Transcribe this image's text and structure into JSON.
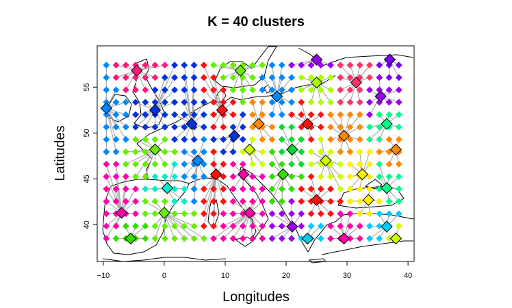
{
  "chart_data": {
    "type": "scatter",
    "title": "K = 40 clusters",
    "xlabel": "Longitudes",
    "ylabel": "Latitudes",
    "xlim": [
      -11,
      41
    ],
    "ylim": [
      36,
      59.5
    ],
    "xticks": [
      -10,
      0,
      10,
      20,
      30,
      40
    ],
    "yticks": [
      40,
      45,
      50,
      55
    ],
    "xtick_labels": [
      "−10",
      "0",
      "10",
      "20",
      "30",
      "40"
    ],
    "ytick_labels": [
      "40",
      "45",
      "50",
      "55"
    ],
    "grid": false,
    "legend": "none",
    "marker": "diamond",
    "center_marker": "outlined-diamond",
    "link_color": "#aaaaaa",
    "palette": [
      "#ff1a7a",
      "#0033dd",
      "#0088ff",
      "#00dd33",
      "#66ee00",
      "#ccff00",
      "#ffee00",
      "#ff8800",
      "#ff1111",
      "#9900ee",
      "#cc00ff",
      "#ff00aa",
      "#00eecc",
      "#00ccff",
      "#7700ee",
      "#00ff88",
      "#33dd00",
      "#aaff00",
      "#ff3366",
      "#5500ff"
    ],
    "centers": [
      {
        "lon": -9.5,
        "lat": 52.7,
        "color": "#0088ff"
      },
      {
        "lon": -4.5,
        "lat": 56.8,
        "color": "#ff1a7a"
      },
      {
        "lon": -1.5,
        "lat": 52.5,
        "color": "#0033dd"
      },
      {
        "lon": 12.5,
        "lat": 56.8,
        "color": "#66ee00"
      },
      {
        "lon": 4.5,
        "lat": 51.0,
        "color": "#0033dd"
      },
      {
        "lon": 9.5,
        "lat": 52.5,
        "color": "#ff1111"
      },
      {
        "lon": 18.5,
        "lat": 54.0,
        "color": "#0088ff"
      },
      {
        "lon": 25.0,
        "lat": 58.0,
        "color": "#9900ee"
      },
      {
        "lon": 37.0,
        "lat": 58.0,
        "color": "#7700ee"
      },
      {
        "lon": 25.0,
        "lat": 55.5,
        "color": "#aaff00"
      },
      {
        "lon": 31.5,
        "lat": 55.5,
        "color": "#ff3366"
      },
      {
        "lon": 35.5,
        "lat": 54.0,
        "color": "#9900ee"
      },
      {
        "lon": 15.5,
        "lat": 51.0,
        "color": "#ff8800"
      },
      {
        "lon": 23.5,
        "lat": 51.0,
        "color": "#ff1111"
      },
      {
        "lon": 36.5,
        "lat": 51.0,
        "color": "#00ff88"
      },
      {
        "lon": 11.5,
        "lat": 49.7,
        "color": "#0033dd"
      },
      {
        "lon": 29.5,
        "lat": 49.7,
        "color": "#ff8800"
      },
      {
        "lon": -1.5,
        "lat": 48.2,
        "color": "#66ee00"
      },
      {
        "lon": 5.5,
        "lat": 47.0,
        "color": "#0088ff"
      },
      {
        "lon": 14.0,
        "lat": 48.2,
        "color": "#ccff00"
      },
      {
        "lon": 21.0,
        "lat": 48.2,
        "color": "#00dd33"
      },
      {
        "lon": 26.5,
        "lat": 47.0,
        "color": "#ccff00"
      },
      {
        "lon": 38.0,
        "lat": 48.2,
        "color": "#ff8800"
      },
      {
        "lon": 0.5,
        "lat": 44.0,
        "color": "#00eecc"
      },
      {
        "lon": 8.5,
        "lat": 45.5,
        "color": "#ff1111"
      },
      {
        "lon": 13.0,
        "lat": 45.5,
        "color": "#ff00aa"
      },
      {
        "lon": 19.5,
        "lat": 45.5,
        "color": "#33dd00"
      },
      {
        "lon": 32.5,
        "lat": 45.5,
        "color": "#ffee00"
      },
      {
        "lon": 36.5,
        "lat": 44.0,
        "color": "#00ff88"
      },
      {
        "lon": 25.0,
        "lat": 42.7,
        "color": "#ff1111"
      },
      {
        "lon": 33.5,
        "lat": 42.7,
        "color": "#ffee00"
      },
      {
        "lon": -7.0,
        "lat": 41.3,
        "color": "#ff00aa"
      },
      {
        "lon": 0.0,
        "lat": 41.3,
        "color": "#66ee00"
      },
      {
        "lon": 14.0,
        "lat": 41.3,
        "color": "#ff00aa"
      },
      {
        "lon": 21.0,
        "lat": 39.8,
        "color": "#9900ee"
      },
      {
        "lon": 36.5,
        "lat": 39.8,
        "color": "#00ccff"
      },
      {
        "lon": -5.5,
        "lat": 38.5,
        "color": "#33dd00"
      },
      {
        "lon": 23.5,
        "lat": 38.5,
        "color": "#00ccff"
      },
      {
        "lon": 29.5,
        "lat": 38.5,
        "color": "#ff00aa"
      },
      {
        "lon": 38.0,
        "lat": 38.5,
        "color": "#ccff00"
      }
    ]
  }
}
